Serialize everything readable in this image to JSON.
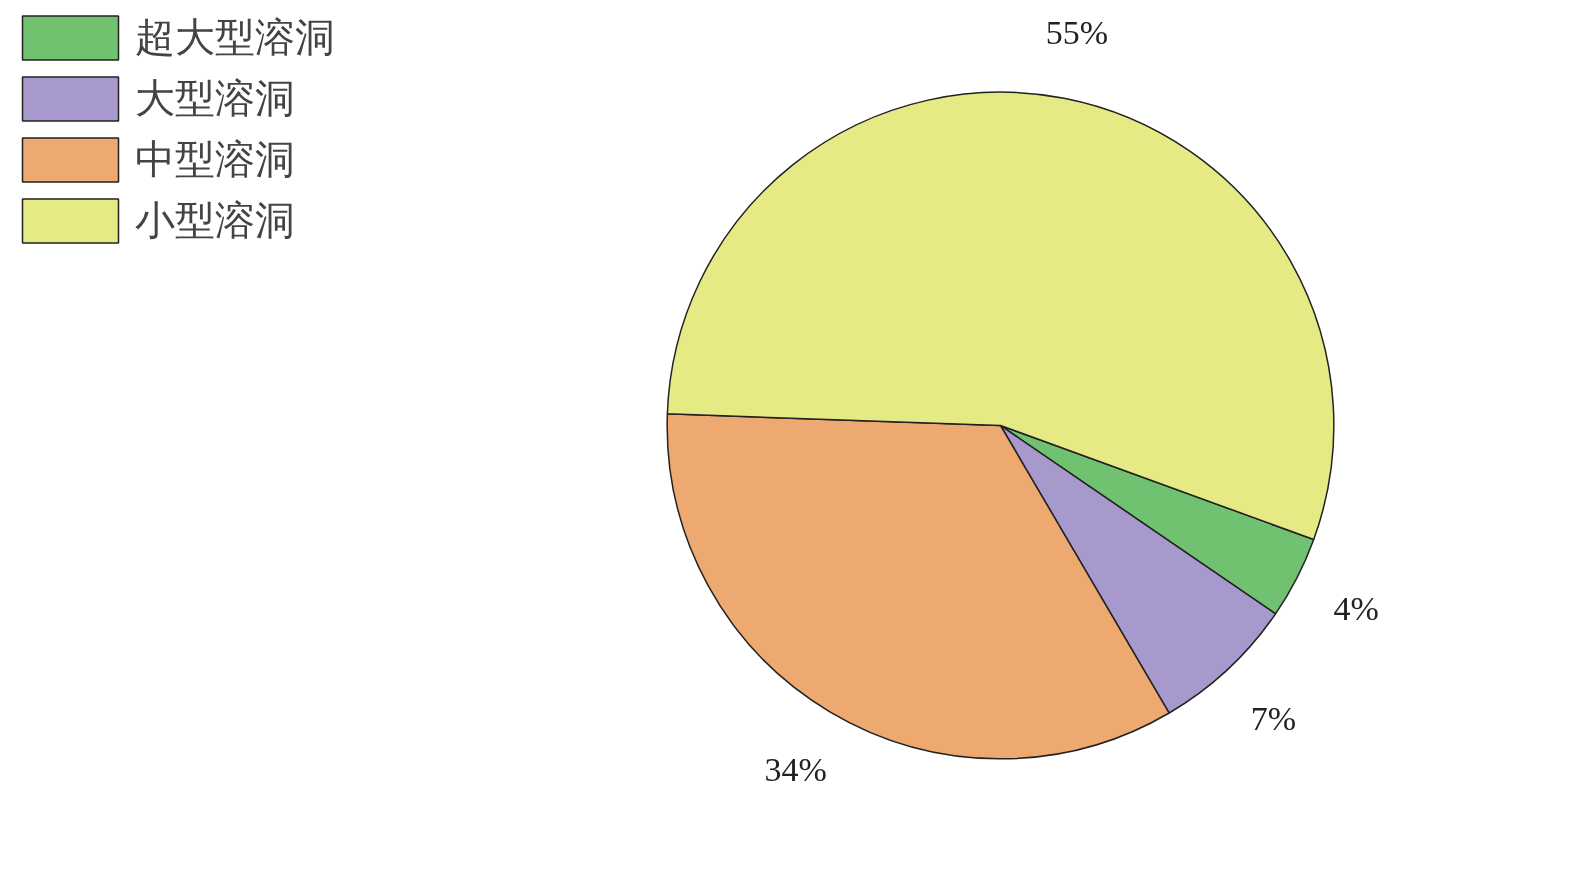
{
  "chart_data": {
    "type": "pie",
    "categories": [
      "超大型溶洞",
      "大型溶洞",
      "中型溶洞",
      "小型溶洞"
    ],
    "values": [
      4,
      7,
      34,
      55
    ],
    "colors": [
      "#70c270",
      "#a899cc",
      "#eda96f",
      "#e6ea85"
    ],
    "value_labels": [
      "4%",
      "7%",
      "34%",
      "55%"
    ],
    "legend": "top left"
  }
}
